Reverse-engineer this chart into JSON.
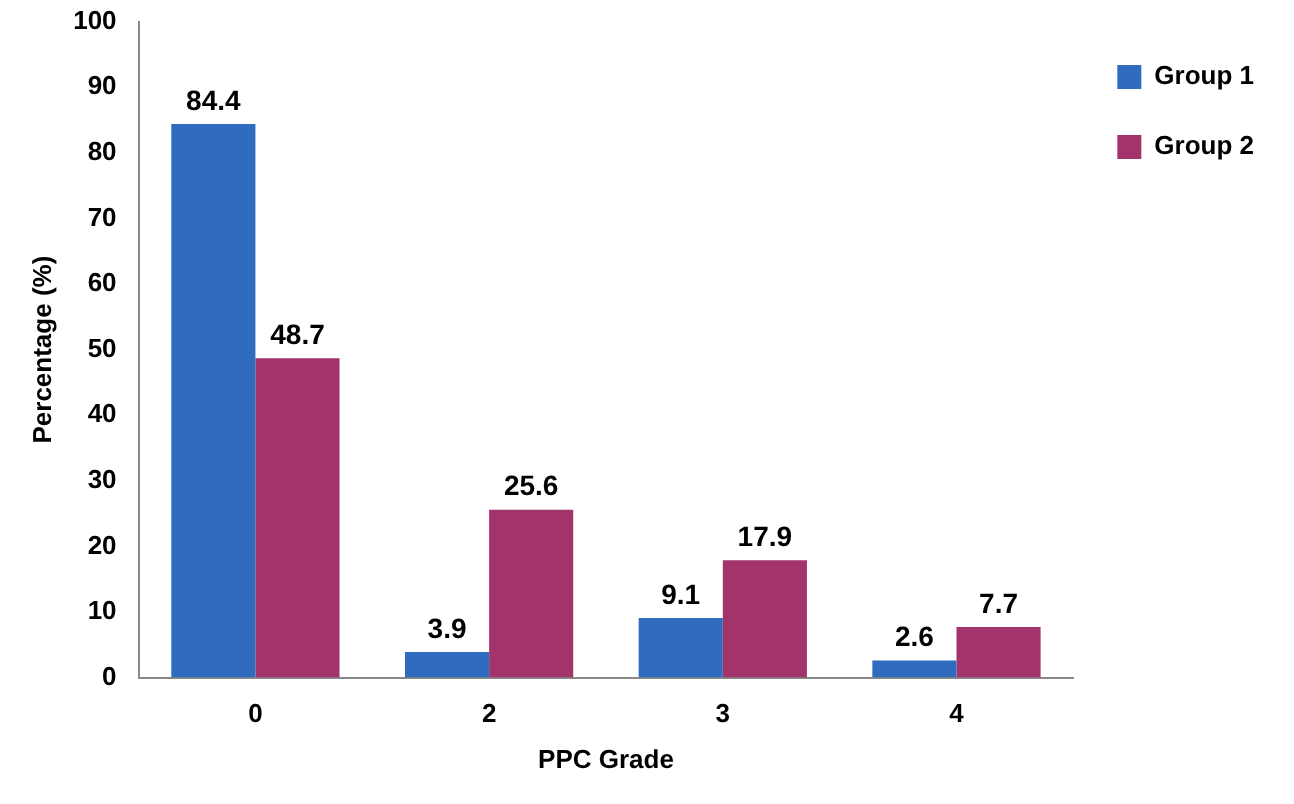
{
  "chart_data": {
    "type": "bar",
    "xlabel": "PPC Grade",
    "ylabel": "Percentage (%)",
    "categories": [
      "0",
      "2",
      "3",
      "4"
    ],
    "series": [
      {
        "name": "Group 1",
        "color": "#2f6bbf",
        "values": [
          84.4,
          3.9,
          9.1,
          2.6
        ]
      },
      {
        "name": "Group 2",
        "color": "#a3336b",
        "values": [
          48.7,
          25.6,
          17.9,
          7.7
        ]
      }
    ],
    "ylim": [
      0,
      100
    ],
    "yticks": [
      0,
      10,
      20,
      30,
      40,
      50,
      60,
      70,
      80,
      90,
      100
    ],
    "grid": false,
    "legend": "top right",
    "data_labels": true
  }
}
